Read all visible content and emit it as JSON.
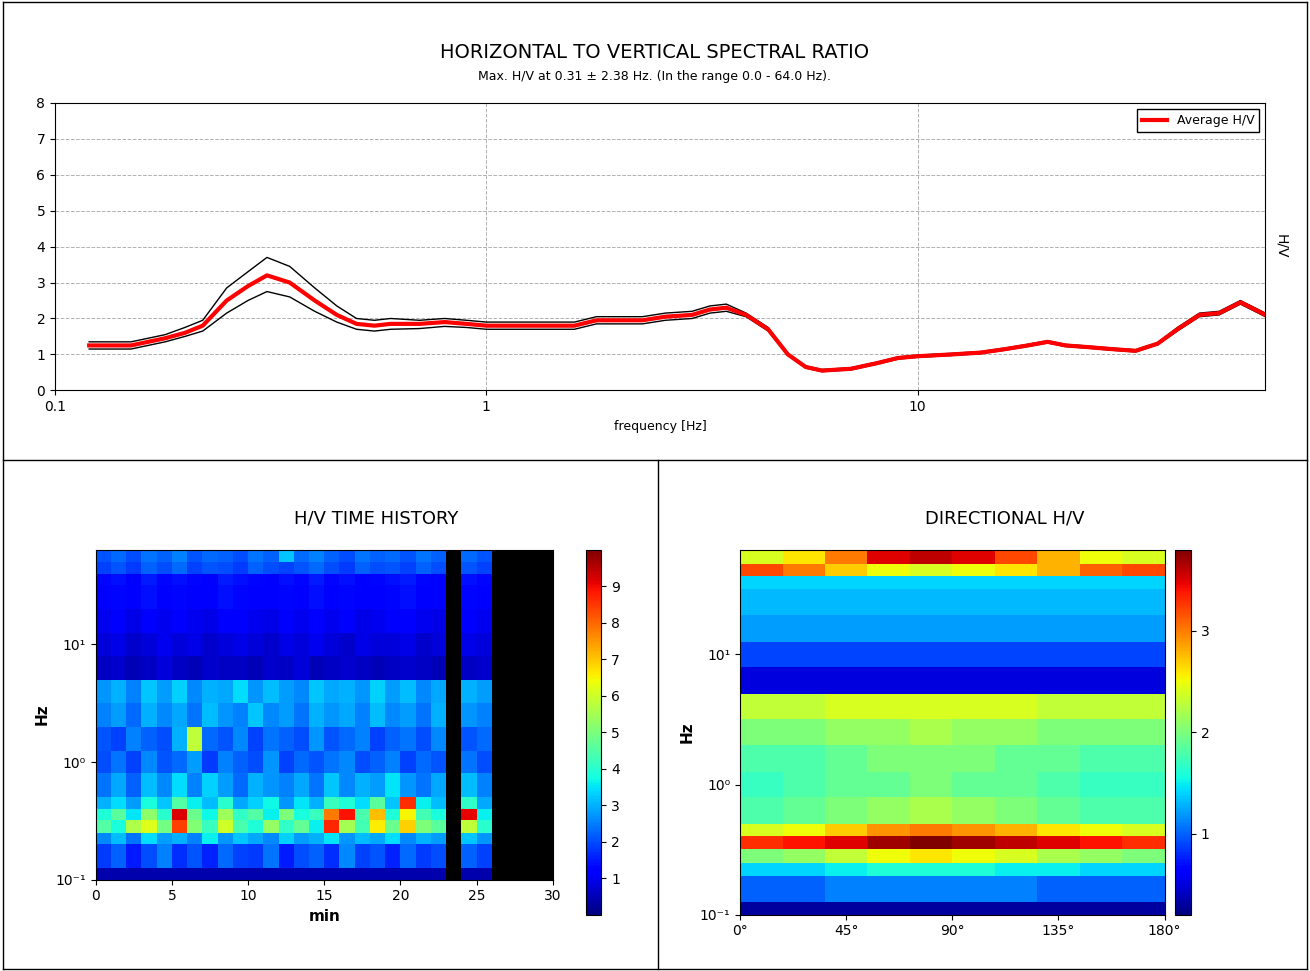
{
  "chart_data": [
    {
      "type": "line",
      "title": "HORIZONTAL TO VERTICAL SPECTRAL RATIO",
      "subtitle": "Max. H/V at 0.31 ± 2.38 Hz. (In the range 0.0 - 64.0 Hz).",
      "xlabel": "frequency [Hz]",
      "ylabel": "H/V",
      "log": "x",
      "grid": true,
      "legend": "upper right",
      "xlim": [
        0.1,
        64
      ],
      "xticks": [
        0.1,
        1,
        10
      ],
      "ylim": [
        0,
        8
      ],
      "yticks": [
        0,
        1,
        2,
        3,
        4,
        5,
        6,
        7,
        8
      ],
      "x": [
        0.12,
        0.15,
        0.18,
        0.2,
        0.22,
        0.25,
        0.28,
        0.31,
        0.35,
        0.4,
        0.45,
        0.5,
        0.55,
        0.6,
        0.7,
        0.8,
        0.9,
        1.0,
        1.2,
        1.4,
        1.6,
        1.8,
        2.0,
        2.3,
        2.6,
        3.0,
        3.3,
        3.6,
        4.0,
        4.5,
        5.0,
        5.5,
        6.0,
        7.0,
        8.0,
        9.0,
        10,
        12,
        14,
        16,
        18,
        20,
        22,
        25,
        28,
        32,
        36,
        40,
        45,
        50,
        56,
        64
      ],
      "series": [
        {
          "name": "Average H/V",
          "color": "#ff0000",
          "line_style": "solid",
          "values": [
            1.25,
            1.25,
            1.45,
            1.6,
            1.8,
            2.5,
            2.9,
            3.2,
            3.0,
            2.5,
            2.1,
            1.85,
            1.8,
            1.85,
            1.85,
            1.9,
            1.85,
            1.8,
            1.8,
            1.8,
            1.8,
            1.95,
            1.95,
            1.95,
            2.05,
            2.1,
            2.25,
            2.3,
            2.1,
            1.7,
            1.0,
            0.65,
            0.55,
            0.6,
            0.75,
            0.9,
            0.95,
            1.0,
            1.05,
            1.15,
            1.25,
            1.35,
            1.25,
            1.2,
            1.15,
            1.1,
            1.3,
            1.7,
            2.1,
            2.15,
            2.45,
            2.1
          ]
        },
        {
          "color": "#000000",
          "line_style": "solid",
          "values": [
            1.35,
            1.35,
            1.55,
            1.75,
            1.95,
            2.85,
            3.3,
            3.7,
            3.45,
            2.85,
            2.35,
            2.0,
            1.95,
            2.0,
            1.95,
            2.0,
            1.95,
            1.9,
            1.9,
            1.9,
            1.9,
            2.05,
            2.05,
            2.05,
            2.15,
            2.2,
            2.35,
            2.4,
            2.15,
            1.75,
            1.03,
            0.68,
            0.58,
            0.63,
            0.78,
            0.93,
            0.98,
            1.03,
            1.08,
            1.18,
            1.28,
            1.38,
            1.28,
            1.23,
            1.18,
            1.13,
            1.33,
            1.75,
            2.15,
            2.2,
            2.5,
            2.15
          ]
        },
        {
          "color": "#000000",
          "line_style": "solid",
          "values": [
            1.15,
            1.15,
            1.35,
            1.5,
            1.65,
            2.15,
            2.5,
            2.75,
            2.6,
            2.2,
            1.9,
            1.7,
            1.65,
            1.7,
            1.72,
            1.78,
            1.75,
            1.7,
            1.7,
            1.7,
            1.7,
            1.85,
            1.85,
            1.85,
            1.95,
            2.0,
            2.15,
            2.2,
            2.05,
            1.65,
            0.97,
            0.62,
            0.52,
            0.57,
            0.72,
            0.87,
            0.92,
            0.97,
            1.02,
            1.12,
            1.22,
            1.32,
            1.22,
            1.17,
            1.12,
            1.07,
            1.27,
            1.65,
            2.05,
            2.1,
            2.4,
            2.05
          ]
        }
      ]
    },
    {
      "type": "heatmap",
      "title": "H/V TIME HISTORY",
      "xlabel": "min",
      "ylabel": "Hz",
      "log": "y",
      "xlim": [
        0,
        30
      ],
      "xticks": [
        0,
        5,
        10,
        15,
        20,
        25,
        30
      ],
      "ylim": [
        0.1,
        64
      ],
      "yticks": [
        {
          "value": 0.1,
          "label": "10⁻¹"
        },
        {
          "value": 1,
          "label": "10⁰"
        },
        {
          "value": 10,
          "label": "10¹"
        }
      ],
      "x_edges": [
        0,
        1,
        2,
        3,
        4,
        5,
        6,
        7,
        8,
        9,
        10,
        11,
        12,
        13,
        14,
        15,
        16,
        17,
        18,
        19,
        20,
        21,
        22,
        23,
        24,
        25,
        26,
        27,
        28,
        29,
        30
      ],
      "y_edges": [
        0.1,
        0.125,
        0.2,
        0.25,
        0.32,
        0.4,
        0.5,
        0.8,
        1.25,
        2,
        3.2,
        5,
        8,
        12.5,
        20,
        32,
        40,
        50,
        64
      ],
      "colorbar_range": [
        0,
        10
      ],
      "colorbar_ticks": [
        1,
        2,
        3,
        4,
        5,
        6,
        7,
        8,
        9
      ],
      "cells": [
        [
          0.4,
          0.4,
          0.4,
          0.4,
          0.4,
          0.4,
          0.4,
          0.4,
          0.4,
          0.4,
          0.4,
          0.4,
          0.4,
          0.4,
          0.4,
          0.4,
          0.4,
          0.4,
          0.4,
          0.4,
          0.4,
          0.4,
          0.4,
          null,
          0.4,
          0.4,
          null,
          null,
          null,
          null
        ],
        [
          1.8,
          2.2,
          1.5,
          2.0,
          2.5,
          1.7,
          2.1,
          1.6,
          2.3,
          1.9,
          1.8,
          2.4,
          1.5,
          2.0,
          2.2,
          1.7,
          2.6,
          1.9,
          2.1,
          1.6,
          2.3,
          1.8,
          2.0,
          null,
          2.2,
          1.9,
          null,
          null,
          null,
          null
        ],
        [
          2.6,
          3.1,
          2.4,
          3.4,
          2.8,
          3.0,
          2.5,
          3.6,
          2.7,
          3.2,
          2.9,
          2.6,
          3.3,
          2.8,
          3.0,
          3.5,
          2.7,
          3.1,
          2.9,
          3.4,
          2.6,
          3.0,
          2.8,
          null,
          3.2,
          2.7,
          null,
          null,
          null,
          null
        ],
        [
          4.5,
          3.8,
          5.6,
          6.2,
          4.9,
          8.4,
          5.1,
          4.2,
          6.0,
          4.4,
          3.9,
          5.3,
          4.1,
          4.7,
          3.6,
          8.7,
          5.5,
          4.3,
          6.6,
          4.8,
          6.9,
          5.0,
          4.6,
          null,
          5.8,
          4.0,
          null,
          null,
          null,
          null
        ],
        [
          3.9,
          4.6,
          3.5,
          5.2,
          4.0,
          9.2,
          4.8,
          3.7,
          5.4,
          4.1,
          4.5,
          3.6,
          5.0,
          3.8,
          4.2,
          7.8,
          8.9,
          4.4,
          7.1,
          3.9,
          6.5,
          4.3,
          3.8,
          null,
          9.1,
          3.6,
          null,
          null,
          null,
          null
        ],
        [
          3.0,
          3.4,
          2.8,
          3.8,
          3.2,
          4.5,
          3.6,
          3.1,
          4.0,
          2.9,
          3.3,
          3.7,
          2.7,
          3.5,
          3.0,
          4.2,
          3.9,
          3.4,
          4.6,
          3.2,
          8.6,
          3.6,
          3.1,
          null,
          4.1,
          2.9,
          null,
          null,
          null,
          null
        ],
        [
          2.4,
          2.9,
          2.2,
          3.1,
          2.6,
          3.4,
          2.5,
          3.3,
          2.8,
          2.3,
          3.0,
          2.7,
          2.5,
          2.9,
          2.4,
          3.2,
          2.6,
          3.0,
          2.8,
          3.5,
          2.7,
          2.4,
          2.9,
          null,
          3.1,
          2.5,
          null,
          null,
          null,
          null
        ],
        [
          2.0,
          2.4,
          1.9,
          2.6,
          2.1,
          2.3,
          2.8,
          1.8,
          2.5,
          2.2,
          2.0,
          2.7,
          1.9,
          2.3,
          2.1,
          2.4,
          2.6,
          2.0,
          2.2,
          2.5,
          1.9,
          2.3,
          2.1,
          null,
          2.4,
          2.0,
          null,
          null,
          null,
          null
        ],
        [
          2.1,
          1.9,
          2.5,
          2.2,
          2.0,
          3.0,
          5.8,
          2.3,
          2.1,
          2.6,
          1.9,
          2.4,
          2.2,
          2.0,
          2.7,
          2.1,
          2.3,
          2.5,
          1.9,
          2.2,
          2.4,
          2.0,
          2.6,
          null,
          2.1,
          2.3,
          null,
          null,
          null,
          null
        ],
        [
          2.5,
          2.8,
          2.3,
          3.0,
          2.6,
          2.9,
          2.4,
          3.1,
          2.7,
          2.5,
          3.2,
          2.6,
          2.8,
          2.4,
          3.0,
          2.7,
          2.9,
          2.5,
          3.1,
          2.6,
          2.8,
          2.4,
          3.0,
          null,
          2.7,
          2.5,
          null,
          null,
          null,
          null
        ],
        [
          2.7,
          3.0,
          2.5,
          3.2,
          2.8,
          3.3,
          2.6,
          3.0,
          2.9,
          3.4,
          2.7,
          3.1,
          2.8,
          2.6,
          3.2,
          2.9,
          3.0,
          2.7,
          3.3,
          2.8,
          3.1,
          2.6,
          2.9,
          null,
          3.0,
          2.8,
          null,
          null,
          null,
          null
        ],
        [
          0.6,
          0.7,
          0.5,
          0.6,
          0.8,
          0.6,
          0.5,
          0.7,
          0.6,
          0.6,
          0.5,
          0.7,
          0.6,
          0.8,
          0.5,
          0.6,
          0.7,
          0.6,
          0.5,
          0.6,
          0.7,
          0.6,
          0.5,
          null,
          0.6,
          0.7,
          null,
          null,
          null,
          null
        ],
        [
          0.8,
          0.9,
          0.7,
          0.8,
          1.0,
          0.8,
          0.9,
          0.7,
          0.8,
          0.9,
          0.8,
          0.7,
          0.9,
          0.8,
          1.0,
          0.8,
          0.7,
          0.9,
          0.8,
          0.8,
          0.9,
          0.7,
          0.8,
          null,
          0.9,
          0.8,
          null,
          null,
          null,
          null
        ],
        [
          1.0,
          1.1,
          0.9,
          1.2,
          1.0,
          1.1,
          1.0,
          0.9,
          1.2,
          1.1,
          1.0,
          0.9,
          1.1,
          1.0,
          1.2,
          1.0,
          1.1,
          0.9,
          1.0,
          1.1,
          1.2,
          1.0,
          0.9,
          null,
          1.1,
          1.0,
          null,
          null,
          null,
          null
        ],
        [
          1.2,
          1.3,
          1.1,
          1.4,
          1.2,
          1.3,
          1.2,
          1.1,
          1.4,
          1.3,
          1.2,
          1.1,
          1.3,
          1.2,
          1.4,
          1.2,
          1.3,
          1.1,
          1.2,
          1.3,
          1.4,
          1.2,
          1.1,
          null,
          1.3,
          1.2,
          null,
          null,
          null,
          null
        ],
        [
          1.3,
          1.4,
          1.2,
          1.5,
          1.3,
          1.4,
          1.3,
          1.2,
          1.5,
          1.4,
          1.3,
          1.2,
          1.4,
          1.3,
          1.5,
          1.3,
          1.4,
          1.2,
          1.3,
          1.4,
          1.5,
          1.3,
          1.2,
          null,
          1.4,
          1.3,
          null,
          null,
          null,
          null
        ],
        [
          1.9,
          2.1,
          1.8,
          2.2,
          2.0,
          2.3,
          1.9,
          2.1,
          2.0,
          1.8,
          2.2,
          2.0,
          1.9,
          2.1,
          2.3,
          2.0,
          1.8,
          2.2,
          2.0,
          2.1,
          1.9,
          2.2,
          2.0,
          null,
          2.1,
          1.9,
          null,
          null,
          null,
          null
        ],
        [
          2.1,
          2.3,
          2.0,
          2.4,
          2.2,
          2.5,
          2.1,
          2.3,
          2.2,
          2.0,
          2.4,
          2.2,
          3.2,
          2.3,
          2.5,
          2.2,
          2.0,
          2.4,
          2.2,
          2.3,
          2.1,
          2.4,
          2.2,
          null,
          2.3,
          2.1,
          null,
          null,
          null,
          null
        ]
      ]
    },
    {
      "type": "heatmap",
      "title": "DIRECTIONAL H/V",
      "ylabel": "Hz",
      "log": "y",
      "xlim": [
        0,
        180
      ],
      "xticks": [
        {
          "value": 0,
          "label": "0°"
        },
        {
          "value": 45,
          "label": "45°"
        },
        {
          "value": 90,
          "label": "90°"
        },
        {
          "value": 135,
          "label": "135°"
        },
        {
          "value": 180,
          "label": "180°"
        }
      ],
      "ylim": [
        0.1,
        64
      ],
      "yticks": [
        {
          "value": 0.1,
          "label": "10⁻¹"
        },
        {
          "value": 1,
          "label": "10⁰"
        },
        {
          "value": 10,
          "label": "10¹"
        }
      ],
      "x_edges": [
        0,
        18,
        36,
        54,
        72,
        90,
        108,
        126,
        144,
        162,
        180
      ],
      "y_edges": [
        0.1,
        0.125,
        0.2,
        0.25,
        0.32,
        0.4,
        0.5,
        0.8,
        1.25,
        2,
        3.2,
        5,
        8,
        12.5,
        20,
        32,
        40,
        50,
        64
      ],
      "colorbar_range": [
        0.2,
        3.8
      ],
      "colorbar_ticks": [
        1,
        2,
        3
      ],
      "cells": [
        [
          0.3,
          0.3,
          0.3,
          0.3,
          0.3,
          0.3,
          0.3,
          0.3,
          0.3,
          0.3
        ],
        [
          1.0,
          1.0,
          1.1,
          1.1,
          1.1,
          1.1,
          1.1,
          1.0,
          1.0,
          1.0
        ],
        [
          1.4,
          1.4,
          1.5,
          1.6,
          1.6,
          1.6,
          1.5,
          1.5,
          1.4,
          1.4
        ],
        [
          2.0,
          2.1,
          2.3,
          2.5,
          2.6,
          2.5,
          2.4,
          2.2,
          2.1,
          2.0
        ],
        [
          3.3,
          3.4,
          3.5,
          3.7,
          3.8,
          3.7,
          3.6,
          3.5,
          3.4,
          3.3
        ],
        [
          2.4,
          2.5,
          2.7,
          2.9,
          3.0,
          2.9,
          2.8,
          2.6,
          2.5,
          2.4
        ],
        [
          1.8,
          1.9,
          2.0,
          2.1,
          2.2,
          2.1,
          2.0,
          1.9,
          1.8,
          1.8
        ],
        [
          1.7,
          1.8,
          1.9,
          1.9,
          2.0,
          1.9,
          1.9,
          1.8,
          1.7,
          1.7
        ],
        [
          1.8,
          1.8,
          1.9,
          2.0,
          2.0,
          2.0,
          1.9,
          1.9,
          1.8,
          1.8
        ],
        [
          2.0,
          2.0,
          2.1,
          2.1,
          2.2,
          2.1,
          2.1,
          2.0,
          2.0,
          2.0
        ],
        [
          2.3,
          2.3,
          2.4,
          2.4,
          2.4,
          2.4,
          2.4,
          2.3,
          2.3,
          2.3
        ],
        [
          0.5,
          0.5,
          0.5,
          0.5,
          0.5,
          0.5,
          0.5,
          0.5,
          0.5,
          0.5
        ],
        [
          0.9,
          0.9,
          0.9,
          0.9,
          0.9,
          0.9,
          0.9,
          0.9,
          0.9,
          0.9
        ],
        [
          1.2,
          1.2,
          1.2,
          1.2,
          1.2,
          1.2,
          1.2,
          1.2,
          1.2,
          1.2
        ],
        [
          1.3,
          1.3,
          1.3,
          1.3,
          1.3,
          1.3,
          1.3,
          1.3,
          1.3,
          1.3
        ],
        [
          1.4,
          1.4,
          1.4,
          1.4,
          1.4,
          1.4,
          1.4,
          1.4,
          1.4,
          1.4
        ],
        [
          3.2,
          3.0,
          2.7,
          2.5,
          2.4,
          2.5,
          2.6,
          2.8,
          3.1,
          3.2
        ],
        [
          2.4,
          2.6,
          3.0,
          3.5,
          3.6,
          3.5,
          3.2,
          2.8,
          2.5,
          2.4
        ]
      ]
    }
  ]
}
